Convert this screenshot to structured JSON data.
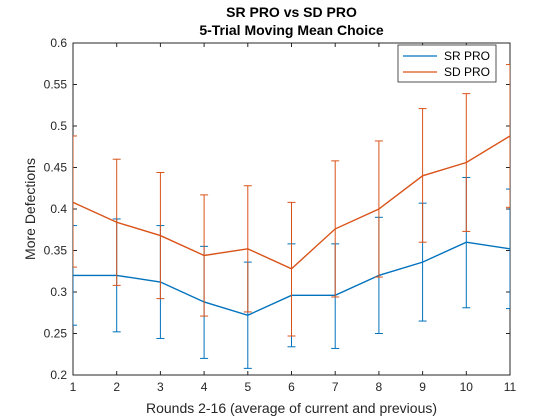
{
  "chart_data": {
    "type": "line",
    "title": "SR PRO vs SD PRO",
    "subtitle": "5-Trial Moving Mean Choice",
    "xlabel": "Rounds 2-16 (average of current and previous)",
    "ylabel": "More Defections",
    "xlim": [
      1,
      11
    ],
    "ylim": [
      0.2,
      0.6
    ],
    "xticks": [
      "1",
      "2",
      "3",
      "4",
      "5",
      "6",
      "7",
      "8",
      "9",
      "10",
      "11"
    ],
    "yticks": [
      "0.2",
      "0.25",
      "0.3",
      "0.35",
      "0.4",
      "0.45",
      "0.5",
      "0.55",
      "0.6"
    ],
    "grid": false,
    "legend_position": "top-right",
    "x": [
      1,
      2,
      3,
      4,
      5,
      6,
      7,
      8,
      9,
      10,
      11
    ],
    "series": [
      {
        "name": "SR PRO",
        "color": "#0072BD",
        "values": [
          0.32,
          0.32,
          0.312,
          0.288,
          0.272,
          0.296,
          0.296,
          0.32,
          0.336,
          0.36,
          0.352
        ],
        "lower": [
          0.26,
          0.252,
          0.244,
          0.22,
          0.208,
          0.234,
          0.232,
          0.25,
          0.265,
          0.281,
          0.28
        ],
        "upper": [
          0.38,
          0.388,
          0.38,
          0.355,
          0.336,
          0.358,
          0.358,
          0.39,
          0.407,
          0.438,
          0.424
        ]
      },
      {
        "name": "SD PRO",
        "color": "#D95319",
        "values": [
          0.408,
          0.384,
          0.368,
          0.344,
          0.352,
          0.328,
          0.376,
          0.4,
          0.44,
          0.456,
          0.488
        ],
        "lower": [
          0.33,
          0.308,
          0.292,
          0.271,
          0.276,
          0.247,
          0.294,
          0.318,
          0.36,
          0.373,
          0.402
        ],
        "upper": [
          0.488,
          0.46,
          0.444,
          0.417,
          0.428,
          0.408,
          0.458,
          0.482,
          0.521,
          0.539,
          0.574
        ]
      }
    ]
  }
}
